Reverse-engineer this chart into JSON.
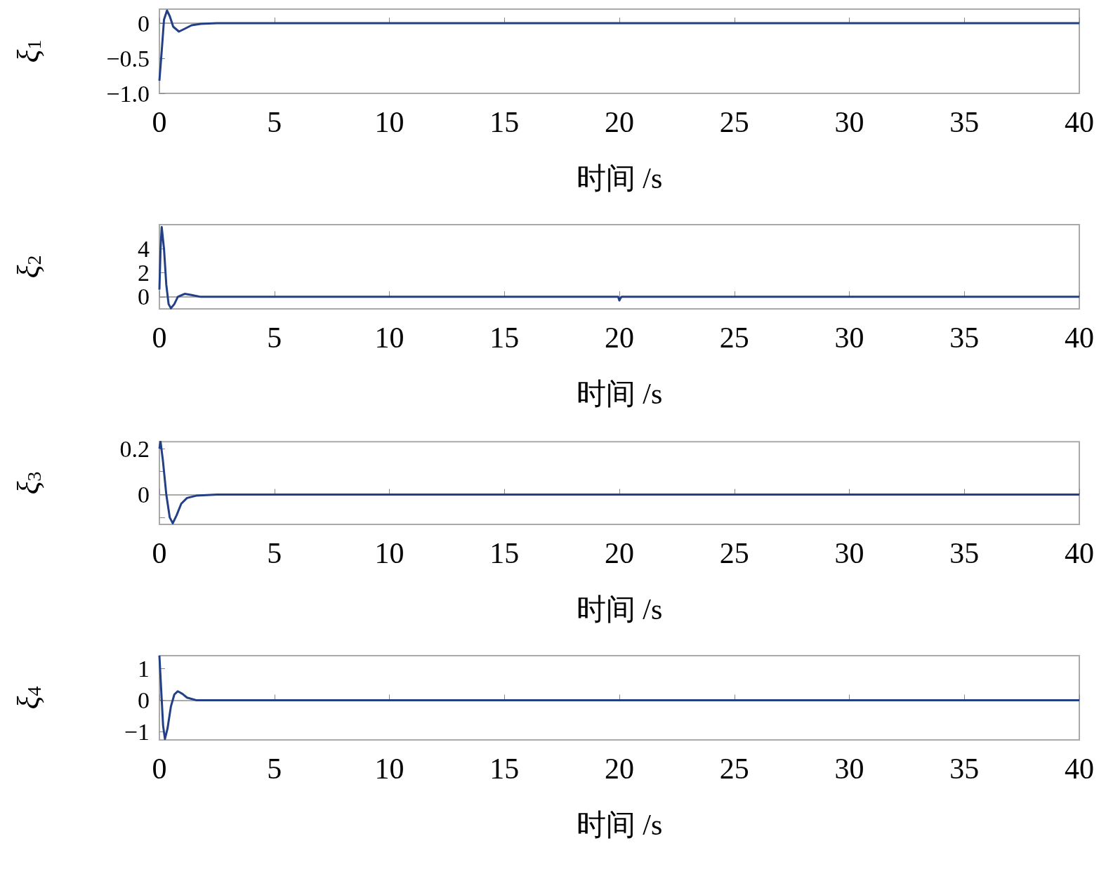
{
  "chart_data": [
    {
      "type": "line",
      "x": [
        0,
        0.1,
        0.2,
        0.33,
        0.45,
        0.6,
        0.85,
        1.1,
        1.4,
        1.8,
        2.5,
        5,
        10,
        20,
        30,
        40
      ],
      "values": [
        -0.82,
        -0.4,
        0.05,
        0.18,
        0.1,
        -0.05,
        -0.12,
        -0.08,
        -0.03,
        -0.01,
        0,
        0,
        0,
        0,
        0,
        0
      ],
      "color": "#233f86",
      "xlim": [
        0,
        40
      ],
      "xticks": [
        0,
        5,
        10,
        15,
        20,
        25,
        30,
        35,
        40
      ],
      "ylim": [
        -1.0,
        0.2
      ],
      "yticks": [
        0,
        {
          "value": -0.5,
          "label": "−0.5"
        },
        {
          "value": -1.0,
          "label": "−1.0"
        }
      ],
      "xlabel": "时间 /s",
      "ylabel": "ξ$_{1}$"
    },
    {
      "type": "line",
      "x": [
        0,
        0.05,
        0.1,
        0.2,
        0.3,
        0.4,
        0.5,
        0.65,
        0.8,
        1.1,
        1.4,
        1.8,
        19.95,
        20,
        20.05,
        20.1,
        40
      ],
      "values": [
        0.6,
        4,
        5.8,
        4,
        1,
        -0.6,
        -0.95,
        -0.6,
        0,
        0.25,
        0.15,
        0,
        0,
        -0.3,
        -0.1,
        0,
        0
      ],
      "color": "#233f86",
      "xlim": [
        0,
        40
      ],
      "xticks": [
        0,
        5,
        10,
        15,
        20,
        25,
        30,
        35,
        40
      ],
      "ylim": [
        -1,
        6
      ],
      "yticks": [
        0,
        2,
        4
      ],
      "xlabel": "时间 /s",
      "ylabel": "ξ$_{2}$"
    },
    {
      "type": "line",
      "x": [
        0,
        0.05,
        0.15,
        0.3,
        0.45,
        0.58,
        0.75,
        0.95,
        1.2,
        1.6,
        2.5,
        5,
        40
      ],
      "values": [
        0.2,
        0.23,
        0.15,
        0.0,
        -0.1,
        -0.125,
        -0.09,
        -0.04,
        -0.015,
        -0.005,
        0,
        0,
        0
      ],
      "color": "#233f86",
      "xlim": [
        0,
        40
      ],
      "xticks": [
        0,
        5,
        10,
        15,
        20,
        25,
        30,
        35,
        40
      ],
      "ylim": [
        -0.13,
        0.23
      ],
      "yticks": [
        {
          "value": -0.1,
          "label": null
        },
        0,
        {
          "value": 0.1,
          "label": null
        },
        0.2
      ],
      "xlabel": "时间 /s",
      "ylabel": "ξ$_{3}$"
    },
    {
      "type": "line",
      "x": [
        0,
        0.08,
        0.16,
        0.24,
        0.35,
        0.5,
        0.65,
        0.8,
        1.0,
        1.2,
        1.6,
        40
      ],
      "values": [
        1.4,
        0.3,
        -0.8,
        -1.22,
        -0.9,
        -0.2,
        0.18,
        0.28,
        0.2,
        0.08,
        0,
        0
      ],
      "color": "#233f86",
      "xlim": [
        0,
        40
      ],
      "xticks": [
        0,
        5,
        10,
        15,
        20,
        25,
        30,
        35,
        40
      ],
      "ylim": [
        -1.25,
        1.4
      ],
      "yticks": [
        {
          "value": -1,
          "label": "−1"
        },
        0,
        1
      ],
      "xlabel": "时间 /s",
      "ylabel": "ξ$_{4}$"
    }
  ]
}
